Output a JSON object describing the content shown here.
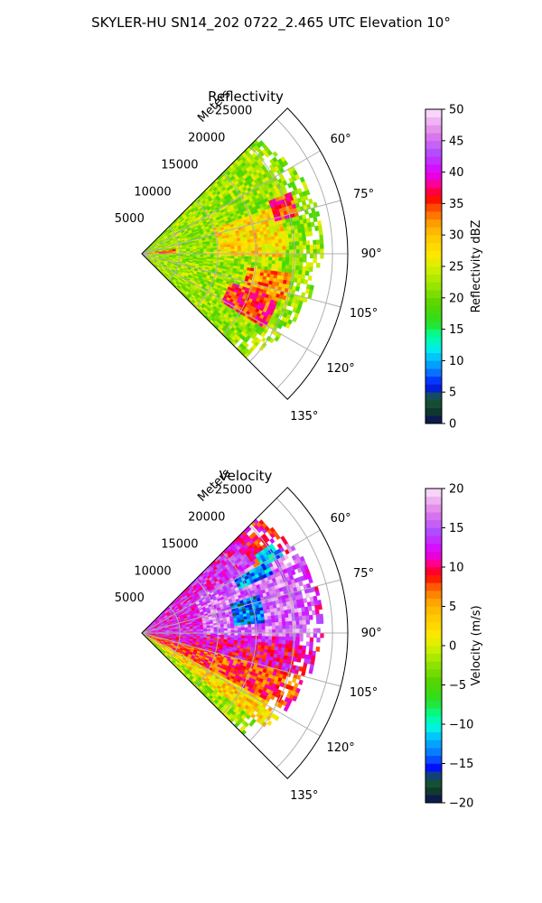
{
  "figure_title": "SKYLER-HU  SN14_202  0722_2.465 UTC Elevation 10°",
  "chart_data": [
    {
      "type": "heatmap",
      "projection": "polar sector",
      "title": "Reflectivity",
      "range_axis_label": "Meters",
      "range_ticks": [
        5000,
        10000,
        15000,
        20000,
        25000
      ],
      "range_tick_labels": [
        "5000",
        "10000",
        "15000",
        "20000",
        "25000"
      ],
      "range_max": 27000,
      "azimuth_range_deg": [
        45,
        135
      ],
      "azimuth_ticks": [
        60,
        75,
        90,
        105,
        120,
        135
      ],
      "azimuth_tick_labels": [
        "60°",
        "75°",
        "90°",
        "105°",
        "120°",
        "135°"
      ],
      "grid": true,
      "colorbar": {
        "label": "Reflectivity dBZ",
        "min": 0,
        "max": 50,
        "ticks": [
          0,
          5,
          10,
          15,
          20,
          25,
          30,
          35,
          40,
          45,
          50
        ],
        "tick_labels": [
          "0",
          "5",
          "10",
          "15",
          "20",
          "25",
          "30",
          "35",
          "40",
          "45",
          "50"
        ],
        "stops": [
          {
            "v": 0,
            "c": "#0b0b5c"
          },
          {
            "v": 2,
            "c": "#0f3a2c"
          },
          {
            "v": 4,
            "c": "#1a5a3a"
          },
          {
            "v": 6,
            "c": "#0010ff"
          },
          {
            "v": 8,
            "c": "#0a6cff"
          },
          {
            "v": 10,
            "c": "#00b4ff"
          },
          {
            "v": 12,
            "c": "#00f0e6"
          },
          {
            "v": 14,
            "c": "#00ff9c"
          },
          {
            "v": 16,
            "c": "#28e020"
          },
          {
            "v": 19,
            "c": "#58d400"
          },
          {
            "v": 22,
            "c": "#9ae600"
          },
          {
            "v": 25,
            "c": "#d8f000"
          },
          {
            "v": 27,
            "c": "#ffe600"
          },
          {
            "v": 30,
            "c": "#ffc400"
          },
          {
            "v": 32,
            "c": "#ff9a00"
          },
          {
            "v": 34,
            "c": "#ff5a00"
          },
          {
            "v": 36,
            "c": "#ff0000"
          },
          {
            "v": 38,
            "c": "#ff0090"
          },
          {
            "v": 40,
            "c": "#e000ff"
          },
          {
            "v": 43,
            "c": "#b04cff"
          },
          {
            "v": 46,
            "c": "#e07ce8"
          },
          {
            "v": 50,
            "c": "#fce6fc"
          }
        ]
      },
      "field": {
        "coverage_km_by_azimuth": [
          [
            45,
            21
          ],
          [
            55,
            22
          ],
          [
            65,
            23
          ],
          [
            75,
            23.5
          ],
          [
            85,
            24
          ],
          [
            95,
            23
          ],
          [
            105,
            22.5
          ],
          [
            115,
            21.5
          ],
          [
            125,
            20.5
          ],
          [
            135,
            19
          ]
        ],
        "regions": [
          {
            "az": [
              82,
              90
            ],
            "r_km": [
              0,
              4.5
            ],
            "value": 34
          },
          {
            "az": [
              68,
              76
            ],
            "r_km": [
              18,
              21
            ],
            "value": 35
          },
          {
            "az": [
              108,
              122
            ],
            "r_km": [
              12,
              19
            ],
            "value": 35
          },
          {
            "az": [
              98,
              108
            ],
            "r_km": [
              14,
              20
            ],
            "value": 32
          },
          {
            "az": [
              70,
              92
            ],
            "r_km": [
              10,
              19
            ],
            "value": 28
          },
          {
            "az": [
              45,
              135
            ],
            "r_km": [
              0,
              24
            ],
            "value": 22
          }
        ]
      }
    },
    {
      "type": "heatmap",
      "projection": "polar sector",
      "title": "Velocity",
      "range_axis_label": "Meters",
      "range_ticks": [
        5000,
        10000,
        15000,
        20000,
        25000
      ],
      "range_tick_labels": [
        "5000",
        "10000",
        "15000",
        "20000",
        "25000"
      ],
      "range_max": 27000,
      "azimuth_range_deg": [
        45,
        135
      ],
      "azimuth_ticks": [
        60,
        75,
        90,
        105,
        120,
        135
      ],
      "azimuth_tick_labels": [
        "60°",
        "75°",
        "90°",
        "105°",
        "120°",
        "135°"
      ],
      "grid": true,
      "colorbar": {
        "label": "Velocity (m/s)",
        "min": -20,
        "max": 20,
        "ticks": [
          -20,
          -15,
          -10,
          -5,
          0,
          5,
          10,
          15,
          20
        ],
        "tick_labels": [
          "−20",
          "−15",
          "−10",
          "−5",
          "0",
          "5",
          "10",
          "15",
          "20"
        ],
        "stops": [
          {
            "v": -20,
            "c": "#0b0b5c"
          },
          {
            "v": -18.5,
            "c": "#0f3a2c"
          },
          {
            "v": -17,
            "c": "#1a5a3a"
          },
          {
            "v": -15.5,
            "c": "#0010ff"
          },
          {
            "v": -14,
            "c": "#0a6cff"
          },
          {
            "v": -12,
            "c": "#00b4ff"
          },
          {
            "v": -10.5,
            "c": "#00f0e6"
          },
          {
            "v": -9,
            "c": "#00ff9c"
          },
          {
            "v": -7,
            "c": "#28e020"
          },
          {
            "v": -4.5,
            "c": "#58d400"
          },
          {
            "v": -2,
            "c": "#9ae600"
          },
          {
            "v": 0,
            "c": "#d8f000"
          },
          {
            "v": 1.5,
            "c": "#ffe600"
          },
          {
            "v": 4,
            "c": "#ffc400"
          },
          {
            "v": 6,
            "c": "#ff9a00"
          },
          {
            "v": 7.5,
            "c": "#ff5a00"
          },
          {
            "v": 9,
            "c": "#ff0000"
          },
          {
            "v": 10.5,
            "c": "#ff0090"
          },
          {
            "v": 12,
            "c": "#e000ff"
          },
          {
            "v": 14.5,
            "c": "#b04cff"
          },
          {
            "v": 17,
            "c": "#e07ce8"
          },
          {
            "v": 20,
            "c": "#fce6fc"
          }
        ]
      },
      "field": {
        "coverage_km_by_azimuth": [
          [
            45,
            21
          ],
          [
            55,
            22
          ],
          [
            65,
            23
          ],
          [
            75,
            23.5
          ],
          [
            85,
            24
          ],
          [
            95,
            23
          ],
          [
            105,
            22.5
          ],
          [
            115,
            21.5
          ],
          [
            125,
            20.5
          ],
          [
            135,
            19
          ]
        ],
        "regions": [
          {
            "az": [
              72,
              85
            ],
            "r_km": [
              12,
              16
            ],
            "value": -14
          },
          {
            "az": [
              60,
              66
            ],
            "r_km": [
              14,
              19
            ],
            "value": -13
          },
          {
            "az": [
              56,
              62
            ],
            "r_km": [
              18,
              21
            ],
            "value": -12
          },
          {
            "az": [
              45,
              62
            ],
            "r_km": [
              17,
              22
            ],
            "value": 10
          },
          {
            "az": [
              58,
              92
            ],
            "r_km": [
              8,
              23
            ],
            "value": 16
          },
          {
            "az": [
              45,
              95
            ],
            "r_km": [
              0,
              24
            ],
            "value": 13
          },
          {
            "az": [
              95,
              105
            ],
            "r_km": [
              0,
              24
            ],
            "value": 11
          },
          {
            "az": [
              105,
              118
            ],
            "r_km": [
              0,
              22
            ],
            "value": 8
          },
          {
            "az": [
              118,
              128
            ],
            "r_km": [
              0,
              21
            ],
            "value": 3
          },
          {
            "az": [
              128,
              135
            ],
            "r_km": [
              0,
              19
            ],
            "value": -2
          }
        ]
      }
    }
  ]
}
